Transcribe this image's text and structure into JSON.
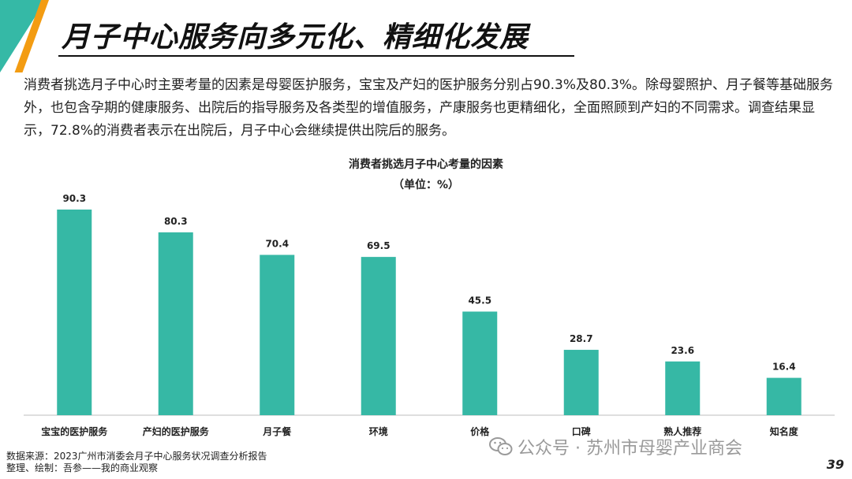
{
  "title": "月子中心服务向多元化、精细化发展",
  "intro": "消费者挑选月子中心时主要考量的因素是母婴医护服务，宝宝及产妇的医护服务分别占90.3%及80.3%。除母婴照护、月子餐等基础服务外，也包含孕期的健康服务、出院后的指导服务及各类型的增值服务，产康服务也更精细化，全面照顾到产妇的不同需求。调查结果显示，72.8%的消费者表示在出院后，月子中心会继续提供出院后的服务。",
  "chart_data": {
    "type": "bar",
    "title": "消费者挑选月子中心考量的因素",
    "subtitle": "（单位：%）",
    "categories": [
      "宝宝的医护服务",
      "产妇的医护服务",
      "月子餐",
      "环境",
      "价格",
      "口碑",
      "熟人推荐",
      "知名度"
    ],
    "values": [
      90.3,
      80.3,
      70.4,
      69.5,
      45.5,
      28.7,
      23.6,
      16.4
    ],
    "value_labels": [
      "90.3",
      "80.3",
      "70.4",
      "69.5",
      "45.5",
      "28.7",
      "23.6",
      "16.4"
    ],
    "bar_color": "#36b8a5",
    "ylim": [
      0,
      100
    ],
    "grid": false,
    "legend": "none"
  },
  "source": {
    "line1": "数据来源：2023广州市消委会月子中心服务状况调查分析报告",
    "line2": "整理、绘制：吾参——我的商业观察"
  },
  "watermark": "公众号 · 苏州市母婴产业商会",
  "page_number": "39",
  "colors": {
    "accent_teal": "#35b9a6",
    "accent_orange": "#f39c12"
  }
}
